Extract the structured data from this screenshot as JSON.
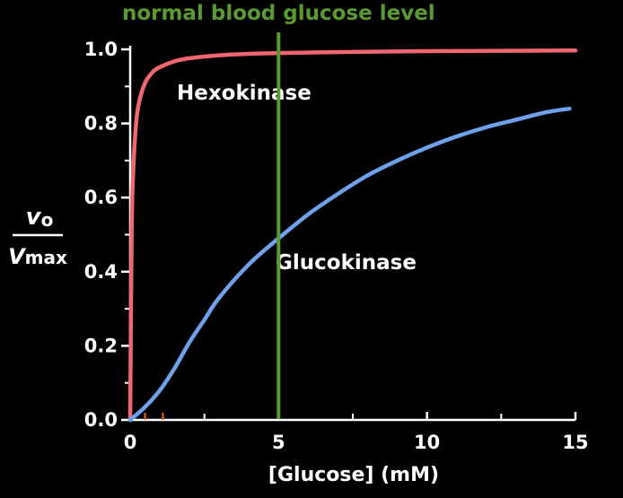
{
  "chart_data": {
    "type": "line",
    "xlabel": "[Glucose] (mM)",
    "ylabel": {
      "numerator": "v",
      "numerator_sub": "o",
      "denominator": "V",
      "denominator_sub": "max"
    },
    "xlim": [
      0,
      15
    ],
    "ylim": [
      0,
      1.0
    ],
    "x_ticks": [
      0,
      5,
      10,
      15
    ],
    "x_tick_labels": [
      "0",
      "5",
      "10",
      "15"
    ],
    "y_ticks": [
      0.0,
      0.2,
      0.4,
      0.6,
      0.8,
      1.0
    ],
    "y_tick_labels": [
      "0.0",
      "0.2",
      "0.4",
      "0.6",
      "0.8",
      "1.0"
    ],
    "x_minor_ticks": [
      2.5,
      7.5,
      12.5
    ],
    "y_minor_ticks": [
      0.1,
      0.3,
      0.5,
      0.7,
      0.9
    ],
    "x_highlight_ticks": [
      0.5,
      1.1
    ],
    "grid": false,
    "reference_line": {
      "x": 5,
      "label": "normal blood glucose level",
      "color": "#5a9a32"
    },
    "series": [
      {
        "name": "Hexokinase",
        "color": "#f0676f",
        "x": [
          0,
          0.05,
          0.1,
          0.2,
          0.3,
          0.5,
          0.75,
          1.0,
          1.5,
          2.0,
          3.0,
          4.0,
          5.0,
          7.5,
          10.0,
          12.5,
          15.0
        ],
        "y": [
          0.0,
          0.5,
          0.667,
          0.8,
          0.857,
          0.909,
          0.938,
          0.952,
          0.968,
          0.976,
          0.984,
          0.988,
          0.99,
          0.993,
          0.995,
          0.996,
          0.997
        ]
      },
      {
        "name": "Glucokinase",
        "color": "#6fa0ea",
        "x": [
          0,
          0.5,
          1.0,
          1.5,
          2.0,
          2.5,
          3.0,
          4.0,
          5.0,
          6.0,
          7.0,
          8.0,
          9.0,
          10.0,
          11.0,
          12.0,
          13.0,
          14.0,
          14.8
        ],
        "y": [
          0.0,
          0.035,
          0.08,
          0.14,
          0.21,
          0.27,
          0.33,
          0.42,
          0.49,
          0.555,
          0.61,
          0.66,
          0.7,
          0.735,
          0.765,
          0.79,
          0.81,
          0.83,
          0.84
        ]
      }
    ]
  }
}
